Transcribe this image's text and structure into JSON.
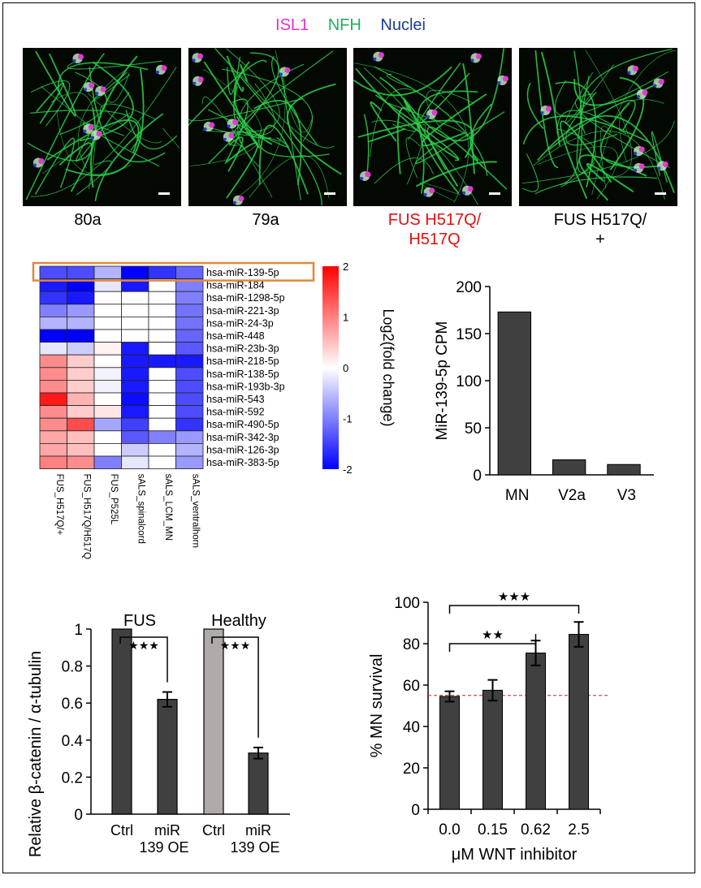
{
  "legend": {
    "items": [
      {
        "label": "ISL1",
        "color": "#e62ed3"
      },
      {
        "label": "NFH",
        "color": "#1fb35a"
      },
      {
        "label": "Nuclei",
        "color": "#1d3b9e"
      }
    ]
  },
  "micrographs": [
    {
      "label": "80a",
      "color": "#000000"
    },
    {
      "label": "79a",
      "color": "#000000"
    },
    {
      "label": "FUS H517Q/\nH517Q",
      "color": "#e01010"
    },
    {
      "label": "FUS H517Q/\n+",
      "color": "#000000"
    }
  ],
  "chart_data": [
    {
      "type": "heatmap",
      "title": "",
      "rows": [
        "hsa-miR-139-5p",
        "hsa-miR-184",
        "hsa-miR-1298-5p",
        "hsa-miR-221-3p",
        "hsa-miR-24-3p",
        "hsa-miR-448",
        "hsa-miR-23b-3p",
        "hsa-miR-218-5p",
        "hsa-miR-138-5p",
        "hsa-miR-193b-3p",
        "hsa-miR-543",
        "hsa-miR-592",
        "hsa-miR-490-5p",
        "hsa-miR-342-3p",
        "hsa-miR-126-3p",
        "hsa-miR-383-5p"
      ],
      "columns": [
        "FUS_H517Q/+",
        "FUS_H517Q/H517Q",
        "FUS_P525L",
        "sALS_spinalcord",
        "sALS_LCM_MN",
        "sALS_ventralhorn"
      ],
      "values": [
        [
          -1.4,
          -1.4,
          -0.6,
          -2.0,
          -1.6,
          -1.2
        ],
        [
          -1.8,
          -2.0,
          -0.2,
          -1.8,
          0.0,
          -1.0
        ],
        [
          -1.6,
          -1.8,
          0.0,
          0.0,
          0.0,
          -1.0
        ],
        [
          -1.0,
          -0.8,
          0.0,
          0.0,
          0.0,
          -1.1
        ],
        [
          -0.6,
          -0.6,
          0.0,
          0.0,
          0.0,
          -1.1
        ],
        [
          -2.0,
          -2.0,
          0.0,
          0.0,
          0.0,
          -1.2
        ],
        [
          -0.2,
          -0.4,
          0.1,
          -1.8,
          0.0,
          -1.3
        ],
        [
          0.9,
          0.4,
          0.0,
          -1.8,
          -1.8,
          -1.8
        ],
        [
          0.9,
          0.4,
          -0.1,
          -1.8,
          0.0,
          -1.4
        ],
        [
          0.9,
          0.4,
          -0.1,
          -1.8,
          0.0,
          -1.4
        ],
        [
          1.8,
          0.6,
          0.0,
          -1.9,
          0.0,
          -1.4
        ],
        [
          0.9,
          0.4,
          0.2,
          -1.8,
          0.0,
          -1.4
        ],
        [
          0.9,
          1.4,
          -0.7,
          -1.5,
          0.0,
          -1.6
        ],
        [
          0.7,
          0.5,
          0.0,
          -1.3,
          -1.0,
          -0.8
        ],
        [
          0.7,
          0.5,
          0.0,
          -0.4,
          0.0,
          -0.6
        ],
        [
          1.0,
          0.9,
          -1.0,
          -0.2,
          0.0,
          -0.8
        ]
      ],
      "highlight_row": "hsa-miR-139-5p",
      "colorbar": {
        "label": "Log2(fold change)",
        "ticks": [
          "2",
          "1",
          "0",
          "-1",
          "-2"
        ],
        "min": -2,
        "max": 2,
        "colors": [
          "#0000ff",
          "#ffffff",
          "#ff0000"
        ]
      }
    },
    {
      "type": "bar",
      "title": "",
      "categories": [
        "MN",
        "V2a",
        "V3"
      ],
      "values": [
        173,
        16,
        11
      ],
      "xlabel": "",
      "ylabel": "MiR-139-5p CPM",
      "ylim": [
        0,
        200
      ],
      "yticks": [
        "0",
        "50",
        "100",
        "150",
        "200"
      ]
    },
    {
      "type": "bar",
      "title": "",
      "categories": [
        "Ctrl",
        "miR\n139 OE",
        "Ctrl",
        "miR\n139 OE"
      ],
      "groups": [
        "FUS",
        "Healthy"
      ],
      "values": [
        1.0,
        0.62,
        1.0,
        0.33
      ],
      "errors": [
        0,
        0.04,
        0,
        0.03
      ],
      "bar_colors": [
        "#404040",
        "#404040",
        "#b0aaa8",
        "#404040"
      ],
      "significance": [
        {
          "group": "FUS",
          "label": "★★★"
        },
        {
          "group": "Healthy",
          "label": "★★★"
        }
      ],
      "xlabel": "",
      "ylabel": "Relative β-catenin / α-tubulin",
      "ylim": [
        0,
        1
      ],
      "yticks": [
        "0",
        "0.2",
        "0.4",
        "0.6",
        "0.8",
        "1"
      ]
    },
    {
      "type": "bar",
      "title": "",
      "categories": [
        "0.0",
        "0.15",
        "0.62",
        "2.5"
      ],
      "values": [
        54.5,
        57.5,
        75.5,
        84.5
      ],
      "errors": [
        2.5,
        5,
        6,
        6
      ],
      "baseline": 55,
      "baseline_color": "#d02020",
      "significance": [
        {
          "from": "0.0",
          "to": "0.62",
          "label": "★★"
        },
        {
          "from": "0.0",
          "to": "2.5",
          "label": "★★★"
        }
      ],
      "xlabel": "μM WNT inhibitor",
      "ylabel": "% MN survival",
      "ylim": [
        0,
        100
      ],
      "yticks": [
        "0",
        "20",
        "40",
        "60",
        "80",
        "100"
      ]
    }
  ]
}
